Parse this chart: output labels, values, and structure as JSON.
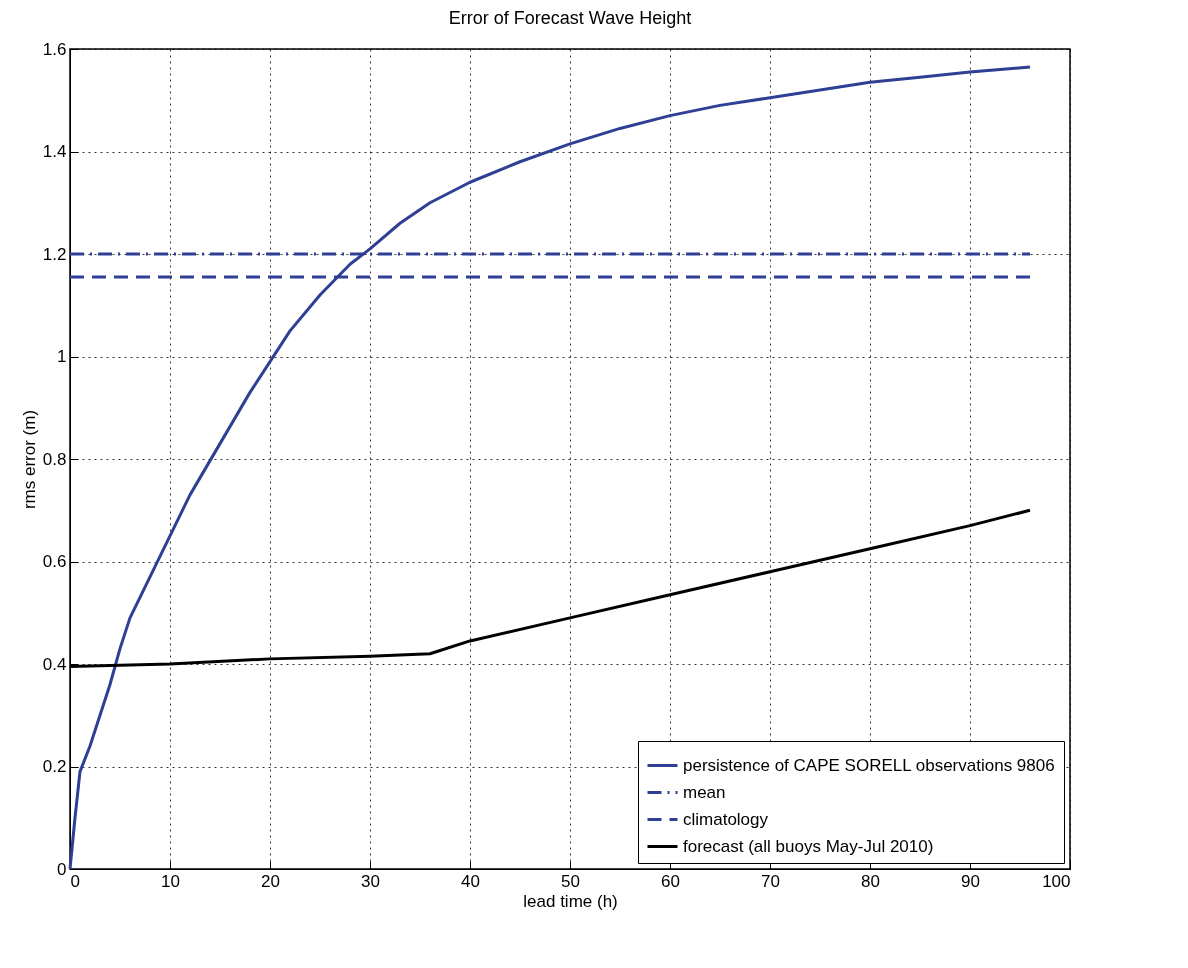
{
  "chart_data": {
    "type": "line",
    "title": "Error of Forecast Wave Height",
    "xlabel": "lead time (h)",
    "ylabel": "rms error (m)",
    "xlim": [
      0,
      100
    ],
    "xticks": [
      0,
      10,
      20,
      30,
      40,
      50,
      60,
      70,
      80,
      90,
      100
    ],
    "ylim": [
      0,
      1.6
    ],
    "yticks": [
      0,
      0.2,
      0.4,
      0.6,
      0.8,
      1,
      1.2,
      1.4,
      1.6
    ],
    "grid": true,
    "legend": "bottom right",
    "marker": "none",
    "series": [
      {
        "name": "persistence of CAPE SORELL observations 9806",
        "color": "#2e3f94",
        "line_style": "solid",
        "x": [
          0,
          0.5,
          1,
          2,
          3,
          4,
          5,
          6,
          8,
          10,
          12,
          15,
          18,
          20,
          22,
          25,
          28,
          30,
          33,
          36,
          40,
          45,
          50,
          55,
          60,
          65,
          70,
          75,
          80,
          85,
          90,
          96
        ],
        "values": [
          0,
          0.1,
          0.19,
          0.24,
          0.3,
          0.36,
          0.43,
          0.49,
          0.57,
          0.65,
          0.73,
          0.83,
          0.93,
          0.99,
          1.05,
          1.12,
          1.18,
          1.21,
          1.26,
          1.3,
          1.34,
          1.38,
          1.415,
          1.445,
          1.47,
          1.49,
          1.505,
          1.52,
          1.535,
          1.545,
          1.555,
          1.565
        ]
      },
      {
        "name": "mean",
        "color": "#2e3f94",
        "line_style": "dashdot",
        "x": [
          0,
          96
        ],
        "values": [
          1.2,
          1.2
        ]
      },
      {
        "name": "climatology",
        "color": "#2e3f94",
        "line_style": "dashed",
        "x": [
          0,
          96
        ],
        "values": [
          1.155,
          1.155
        ]
      },
      {
        "name": "forecast (all buoys May-Jul 2010)",
        "color": "#000000",
        "line_style": "solid",
        "x": [
          0,
          10,
          20,
          30,
          36,
          40,
          50,
          60,
          70,
          80,
          90,
          96
        ],
        "values": [
          0.395,
          0.4,
          0.41,
          0.415,
          0.42,
          0.445,
          0.49,
          0.535,
          0.58,
          0.625,
          0.67,
          0.7
        ]
      }
    ]
  }
}
